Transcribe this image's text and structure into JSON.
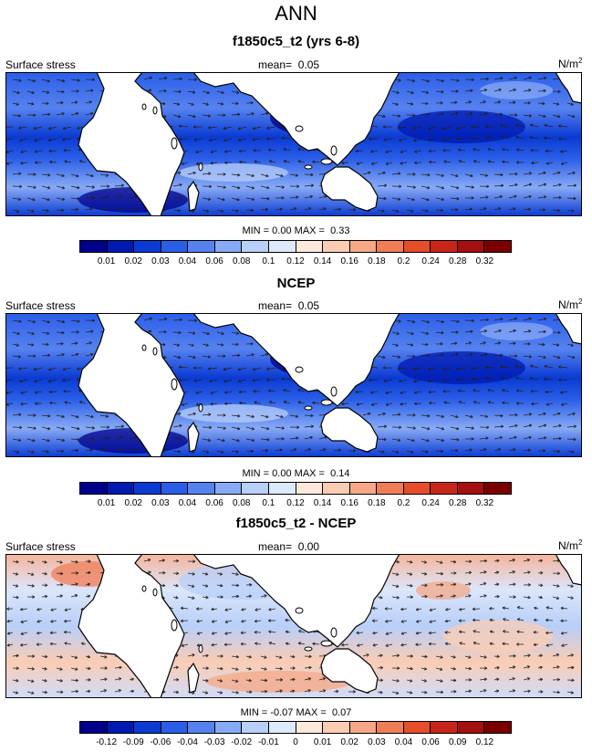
{
  "main_title": "ANN",
  "panels": [
    {
      "title": "f1850c5_t2 (yrs 6-8)",
      "field_label": "Surface stress",
      "mean_label": "mean=",
      "mean_value": "0.05",
      "unit": "N/m",
      "unit_sup": "2",
      "min_label": "MIN =",
      "min_value": "0.00",
      "max_label": "MAX =",
      "max_value": "0.33",
      "colorbar": "abs",
      "variant": "model"
    },
    {
      "title": "NCEP",
      "field_label": "Surface stress",
      "mean_label": "mean=",
      "mean_value": "0.05",
      "unit": "N/m",
      "unit_sup": "2",
      "min_label": "MIN =",
      "min_value": "0.00",
      "max_label": "MAX =",
      "max_value": "0.14",
      "colorbar": "abs",
      "variant": "obs"
    },
    {
      "title": "f1850c5_t2 - NCEP",
      "field_label": "Surface stress",
      "mean_label": "mean=",
      "mean_value": "0.00",
      "unit": "N/m",
      "unit_sup": "2",
      "min_label": "MIN =",
      "min_value": "-0.07",
      "max_label": "MAX =",
      "max_value": "0.07",
      "colorbar": "diff",
      "variant": "diff"
    }
  ],
  "colorbars": {
    "abs": {
      "colors": [
        "#00008b",
        "#0019b0",
        "#0a3ad2",
        "#2a5ee8",
        "#5682f0",
        "#88aaf5",
        "#b8cff9",
        "#dde9fc",
        "#fde9dc",
        "#fbccb4",
        "#f6a886",
        "#f07d57",
        "#e54e2a",
        "#c9241a",
        "#a50f0f",
        "#7a0000"
      ],
      "ticks": [
        "0.01",
        "0.02",
        "0.03",
        "0.04",
        "0.06",
        "0.08",
        "0.1",
        "0.12",
        "0.14",
        "0.16",
        "0.18",
        "0.2",
        "0.24",
        "0.28",
        "0.32"
      ]
    },
    "diff": {
      "colors": [
        "#00008b",
        "#0019b0",
        "#0a3ad2",
        "#2a5ee8",
        "#5682f0",
        "#88aaf5",
        "#b8cff9",
        "#dde9fc",
        "#fde9dc",
        "#fbccb4",
        "#f6a886",
        "#f07d57",
        "#e54e2a",
        "#c9241a",
        "#a50f0f",
        "#7a0000"
      ],
      "ticks": [
        "-0.12",
        "-0.09",
        "-0.06",
        "-0.04",
        "-0.03",
        "-0.02",
        "-0.01",
        "0",
        "0.01",
        "0.02",
        "0.03",
        "0.04",
        "0.06",
        "0.09",
        "0.12"
      ]
    }
  }
}
